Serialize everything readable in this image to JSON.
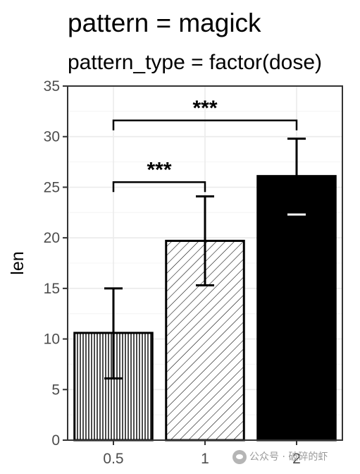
{
  "chart_data": {
    "type": "bar",
    "title": "pattern = magick",
    "subtitle": "pattern_type = factor(dose)",
    "xlabel": "",
    "ylabel": "len",
    "categories": [
      "0.5",
      "1",
      "2"
    ],
    "values": [
      10.6,
      19.7,
      26.1
    ],
    "error_upper": [
      15.0,
      24.1,
      29.8
    ],
    "error_lower": [
      6.1,
      15.3,
      22.3
    ],
    "ylim": [
      0,
      35
    ],
    "yticks": [
      0,
      5,
      10,
      15,
      20,
      25,
      30,
      35
    ],
    "grid": true,
    "legend": "none",
    "fills": [
      "vertical-lines",
      "diagonal-lines",
      "solid-black"
    ],
    "colors": {
      "bar_fill_solid": "#000000",
      "bar_outline": "#000000",
      "pattern_bg": "#ffffff",
      "grid": "#ebebeb",
      "panel_border": "#333333"
    },
    "comparisons": [
      {
        "from": "0.5",
        "to": "1",
        "label": "***",
        "y": 25.5
      },
      {
        "from": "0.5",
        "to": "2",
        "label": "***",
        "y": 31.6
      }
    ]
  },
  "watermark": {
    "icon": "wechat-icon",
    "text": "公众号 · 破碎的虾"
  }
}
